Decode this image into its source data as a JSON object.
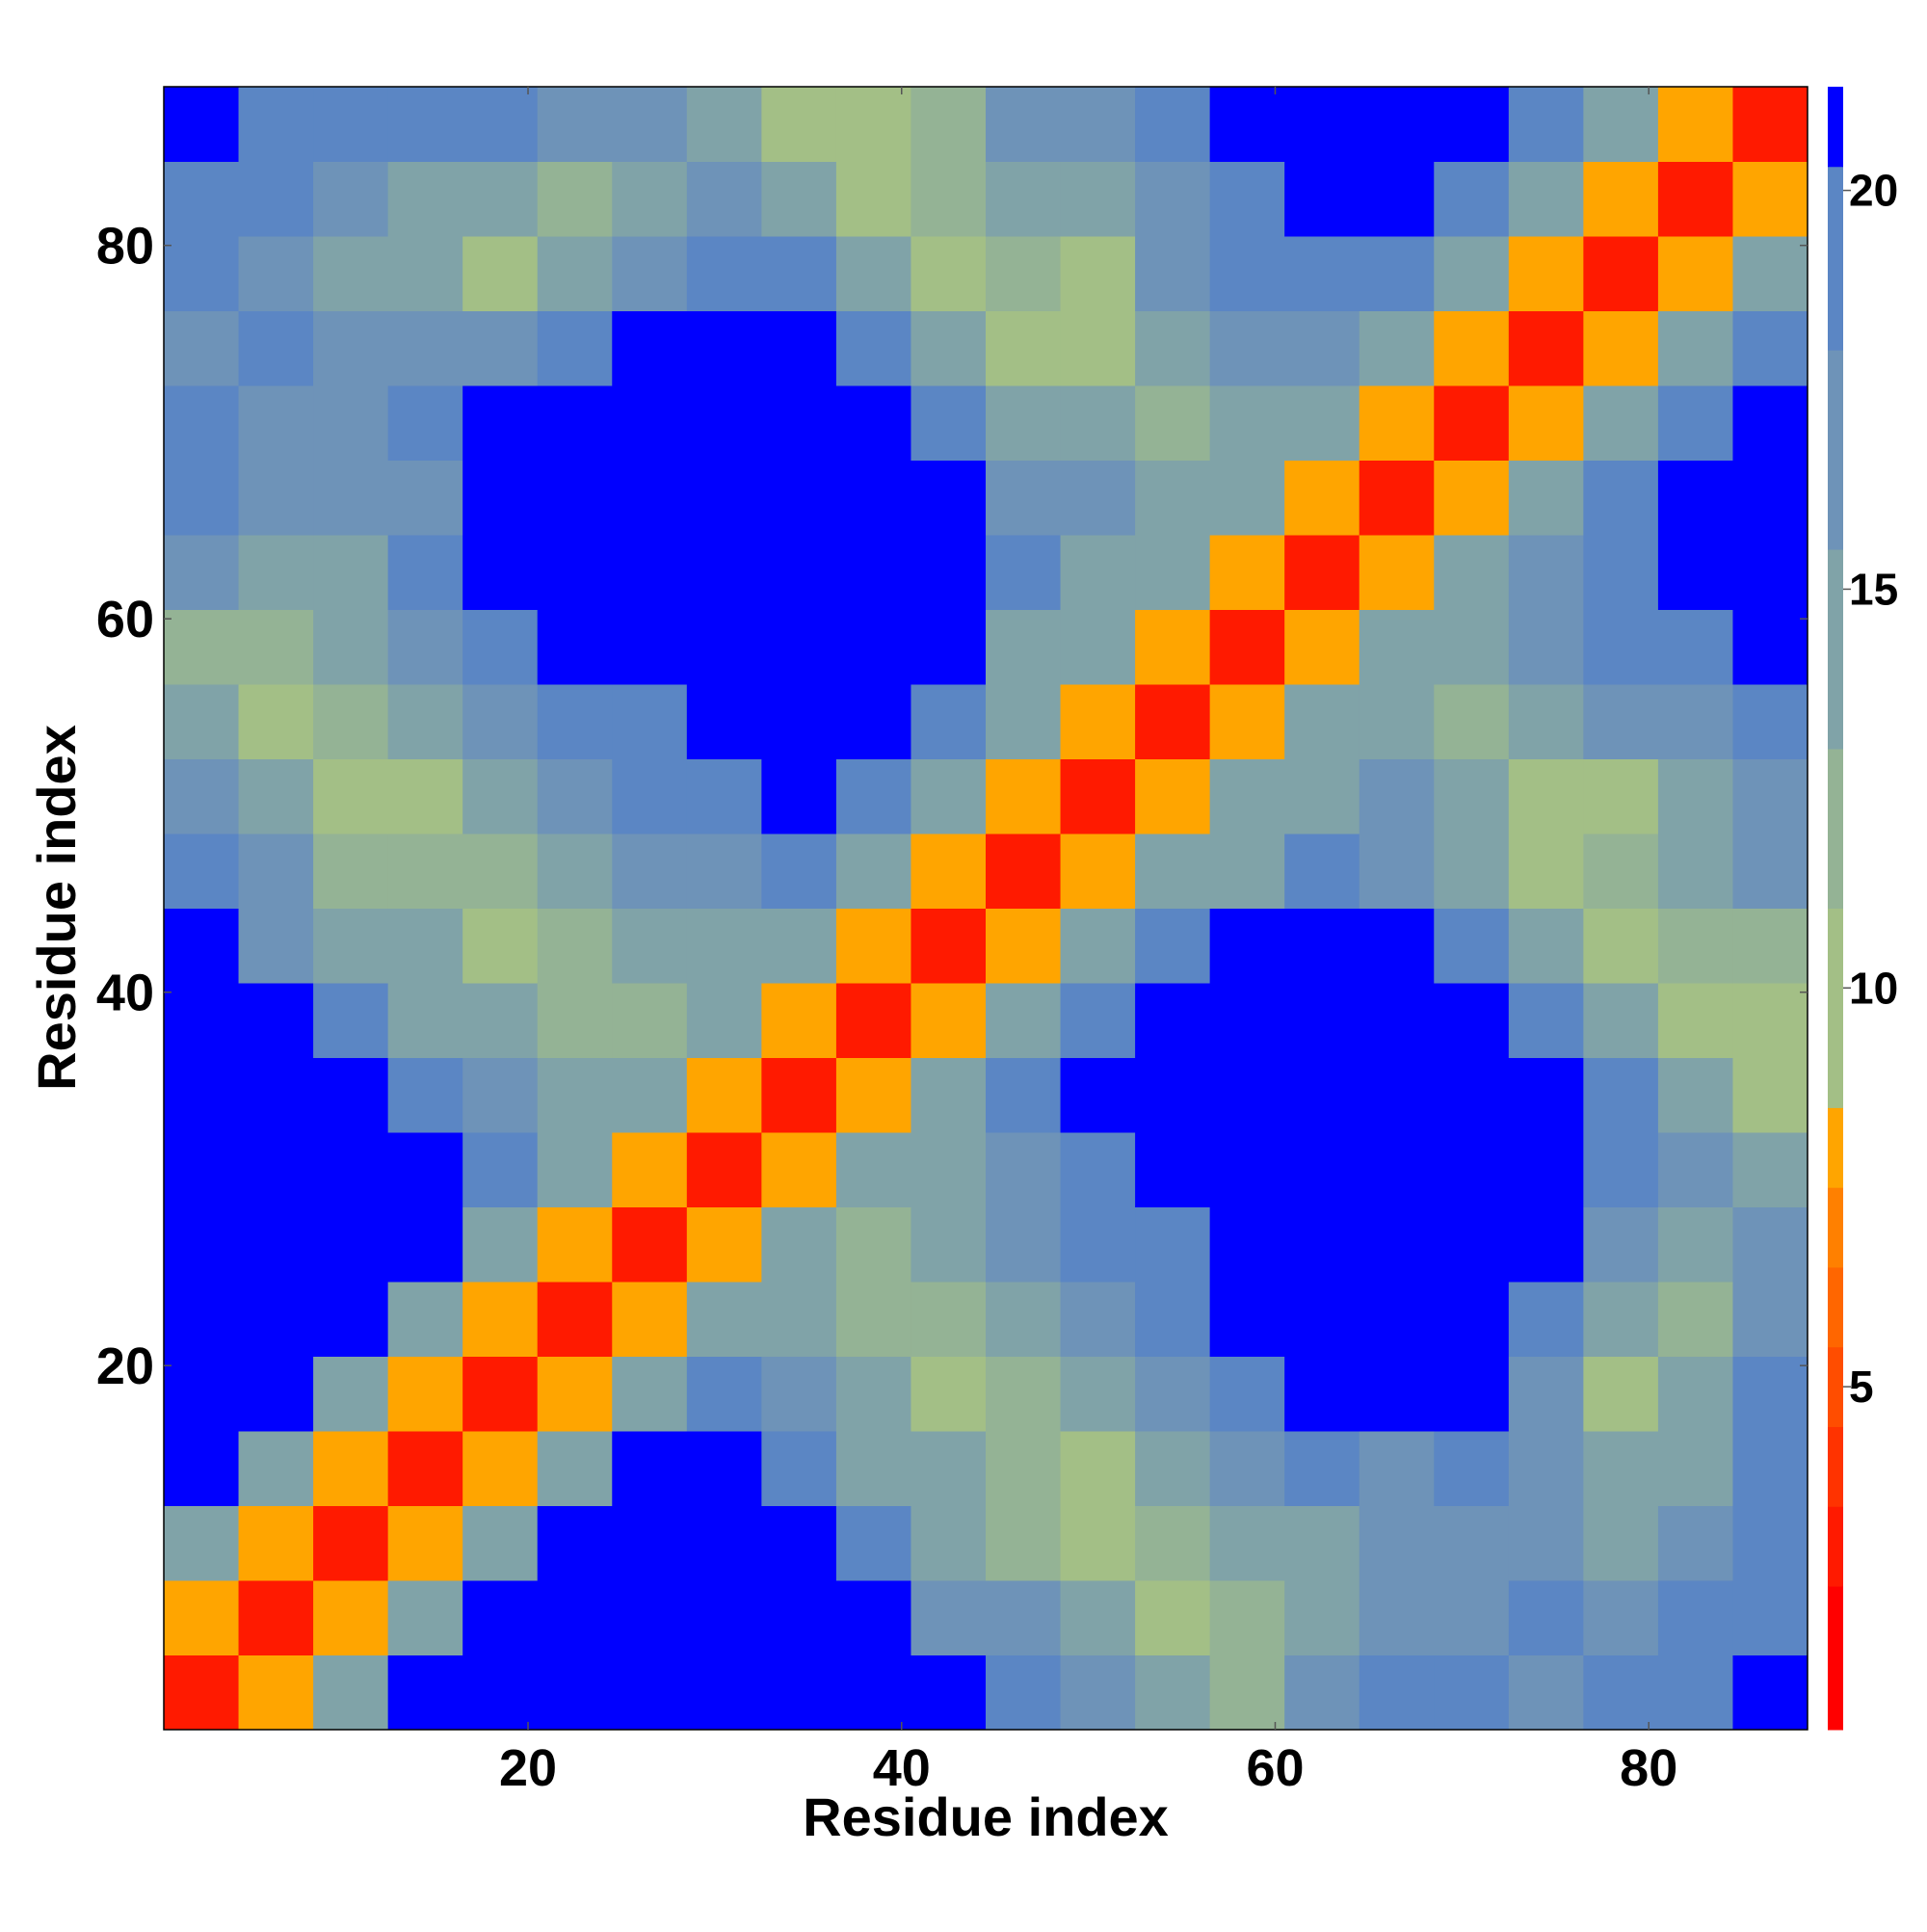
{
  "chart_data": {
    "type": "heatmap",
    "x_label": "Residue index",
    "y_label": "Residue index",
    "xlim": [
      0.5,
      88.5
    ],
    "ylim": [
      0.5,
      88.5
    ],
    "xticks": [
      20,
      40,
      60,
      80
    ],
    "yticks": [
      20,
      40,
      60,
      80
    ],
    "xbins": [
      0.5,
      4.5,
      8.5,
      12.5,
      16.5,
      20.5,
      24.5,
      28.5,
      32.5,
      36.5,
      40.5,
      44.5,
      48.5,
      52.5,
      56.5,
      60.5,
      64.5,
      68.5,
      72.5,
      76.5,
      80.5,
      84.5,
      88.5
    ],
    "ybins": [
      0.5,
      4.5,
      8.5,
      12.5,
      16.5,
      20.5,
      24.5,
      28.5,
      32.5,
      36.5,
      40.5,
      44.5,
      48.5,
      52.5,
      56.5,
      60.5,
      64.5,
      68.5,
      72.5,
      76.5,
      80.5,
      84.5,
      88.5
    ],
    "z": [
      [
        3,
        8,
        14,
        21,
        21,
        21,
        21,
        21,
        21,
        21,
        21,
        18,
        16,
        14,
        12,
        17,
        18,
        19,
        17,
        18,
        19,
        21
      ],
      [
        8,
        3,
        8,
        14,
        21,
        21,
        21,
        21,
        21,
        21,
        17,
        16,
        14,
        9,
        12,
        15,
        17,
        16,
        18,
        17,
        18,
        20
      ],
      [
        14,
        8,
        3,
        8,
        14,
        21,
        21,
        21,
        21,
        18,
        15,
        12,
        10,
        11,
        13,
        15,
        16,
        17,
        16,
        14,
        17,
        19
      ],
      [
        21,
        14,
        8,
        3,
        8,
        14,
        21,
        21,
        18,
        14,
        13,
        11,
        10,
        14,
        16,
        18,
        17,
        18,
        17,
        14,
        15,
        19
      ],
      [
        21,
        21,
        14,
        8,
        3,
        8,
        14,
        20,
        16,
        13,
        10,
        12,
        15,
        17,
        20,
        21,
        21,
        21,
        17,
        10,
        14,
        18
      ],
      [
        21,
        21,
        21,
        14,
        8,
        3,
        8,
        14,
        15,
        12,
        11,
        14,
        16,
        19,
        21,
        21,
        21,
        21,
        18,
        15,
        12,
        16
      ],
      [
        21,
        21,
        21,
        21,
        14,
        8,
        3,
        8,
        14,
        12,
        14,
        16,
        18,
        20,
        21,
        21,
        21,
        21,
        21,
        17,
        15,
        17
      ],
      [
        21,
        21,
        21,
        21,
        20,
        14,
        8,
        3,
        8,
        14,
        15,
        17,
        20,
        21,
        21,
        21,
        21,
        21,
        21,
        19,
        16,
        15
      ],
      [
        21,
        21,
        21,
        18,
        16,
        15,
        14,
        8,
        3,
        8,
        14,
        18,
        21,
        21,
        21,
        21,
        21,
        21,
        21,
        18,
        14,
        10
      ],
      [
        21,
        21,
        18,
        14,
        13,
        12,
        12,
        14,
        8,
        3,
        8,
        14,
        20,
        21,
        21,
        21,
        21,
        21,
        20,
        15,
        9,
        10
      ],
      [
        21,
        17,
        15,
        13,
        10,
        11,
        14,
        15,
        14,
        8,
        3,
        8,
        14,
        19,
        21,
        21,
        21,
        18,
        13,
        9,
        11,
        12
      ],
      [
        18,
        16,
        12,
        11,
        12,
        14,
        16,
        17,
        18,
        14,
        8,
        3,
        8,
        14,
        15,
        18,
        17,
        14,
        10,
        11,
        13,
        16
      ],
      [
        16,
        14,
        10,
        10,
        15,
        16,
        18,
        20,
        21,
        20,
        14,
        8,
        3,
        8,
        14,
        15,
        16,
        13,
        10,
        9,
        14,
        17
      ],
      [
        14,
        9,
        11,
        14,
        17,
        19,
        20,
        21,
        21,
        21,
        19,
        14,
        8,
        3,
        8,
        14,
        14,
        12,
        14,
        16,
        17,
        18
      ],
      [
        12,
        12,
        13,
        16,
        20,
        21,
        21,
        21,
        21,
        21,
        21,
        15,
        14,
        8,
        3,
        8,
        14,
        15,
        16,
        18,
        20,
        21
      ],
      [
        17,
        15,
        15,
        18,
        21,
        21,
        21,
        21,
        21,
        21,
        21,
        18,
        15,
        14,
        8,
        3,
        8,
        14,
        17,
        19,
        21,
        21
      ],
      [
        18,
        17,
        16,
        17,
        21,
        21,
        21,
        21,
        21,
        21,
        21,
        17,
        16,
        14,
        14,
        8,
        3,
        8,
        14,
        18,
        21,
        21
      ],
      [
        19,
        16,
        17,
        18,
        21,
        21,
        21,
        21,
        21,
        21,
        18,
        14,
        13,
        12,
        15,
        14,
        8,
        3,
        8,
        14,
        20,
        21
      ],
      [
        17,
        18,
        16,
        17,
        17,
        18,
        21,
        21,
        21,
        20,
        13,
        10,
        10,
        14,
        16,
        17,
        14,
        8,
        3,
        8,
        14,
        19
      ],
      [
        18,
        17,
        14,
        14,
        10,
        15,
        17,
        19,
        18,
        15,
        9,
        11,
        9,
        16,
        18,
        19,
        18,
        14,
        8,
        3,
        8,
        14
      ],
      [
        19,
        18,
        17,
        15,
        14,
        12,
        15,
        16,
        14,
        9,
        11,
        13,
        14,
        17,
        20,
        21,
        21,
        20,
        14,
        8,
        3,
        8
      ],
      [
        21,
        20,
        19,
        19,
        18,
        16,
        17,
        15,
        10,
        10,
        12,
        16,
        17,
        18,
        21,
        21,
        21,
        21,
        19,
        14,
        8,
        3
      ]
    ],
    "colorbar": {
      "zlim": [
        0.7,
        21.3
      ],
      "ticks": [
        5,
        10,
        15,
        20
      ],
      "edges": [
        0.7,
        2.5,
        3.5,
        4.5,
        5.5,
        6.5,
        7.5,
        8.5,
        11,
        13,
        15.5,
        18,
        20.3,
        21.3
      ],
      "colors": [
        "#ff0000",
        "#ff1a00",
        "#ff3300",
        "#ff4d00",
        "#ff6600",
        "#ff8000",
        "#ffa500",
        "#a3bf86",
        "#94b395",
        "#80a3a8",
        "#6e93b8",
        "#5b86c4",
        "#0000ff"
      ]
    }
  }
}
